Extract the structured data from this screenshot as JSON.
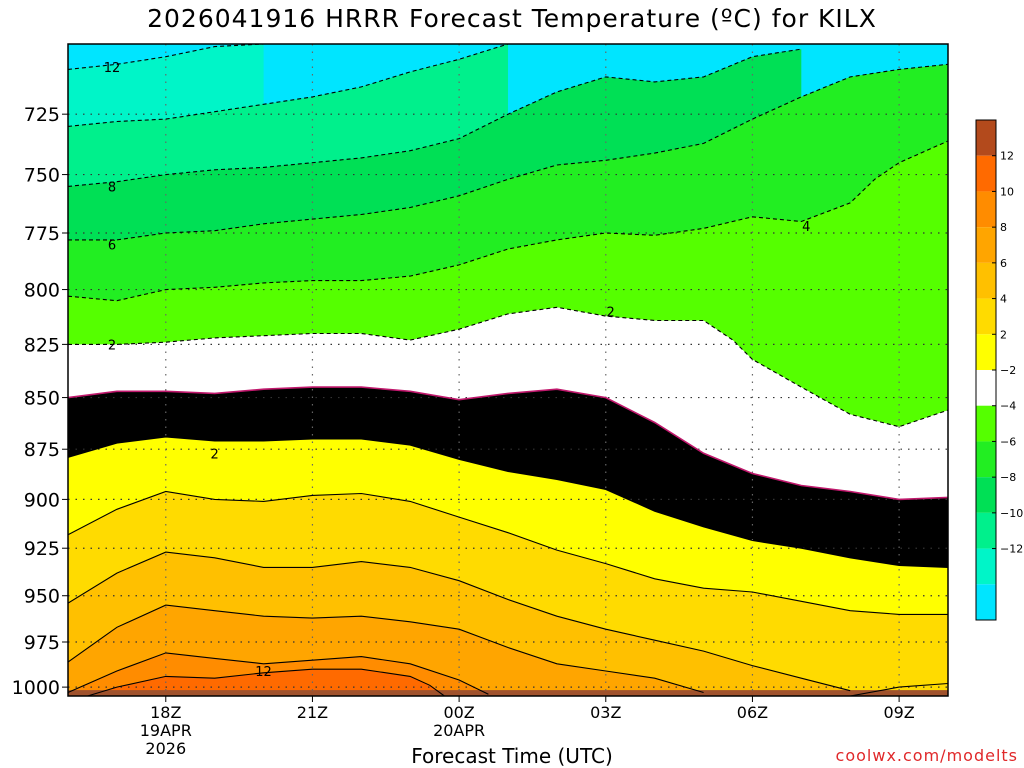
{
  "title": "2026041916 HRRR Forecast Temperature (ºC) for KILX",
  "watermark": "coolwx.com/modelts",
  "chart_data": {
    "type": "time-height contour",
    "xlabel": "Forecast Time (UTC)",
    "ylabel": "",
    "x_range_hours_utc": [
      16,
      34
    ],
    "y_range_hpa": [
      697,
      1005
    ],
    "y_scale": "log-pressure (inverted)",
    "grid": true,
    "legend": "right colorbar",
    "x_ticks": [
      {
        "hour": 18,
        "lines": [
          "18Z",
          "19APR",
          "2026"
        ]
      },
      {
        "hour": 21,
        "lines": [
          "21Z"
        ]
      },
      {
        "hour": 24,
        "lines": [
          "00Z",
          "20APR"
        ]
      },
      {
        "hour": 27,
        "lines": [
          "03Z"
        ]
      },
      {
        "hour": 30,
        "lines": [
          "06Z"
        ]
      },
      {
        "hour": 33,
        "lines": [
          "09Z"
        ]
      }
    ],
    "y_ticks": [
      725,
      750,
      775,
      800,
      825,
      850,
      875,
      900,
      925,
      950,
      975,
      1000
    ],
    "colorbar": {
      "bands": [
        {
          "lo": 14,
          "hi": 16,
          "color": "#b34a1c"
        },
        {
          "lo": 12,
          "hi": 14,
          "color": "#ff6a00"
        },
        {
          "lo": 10,
          "hi": 12,
          "color": "#ff8c00"
        },
        {
          "lo": 8,
          "hi": 10,
          "color": "#ffa500"
        },
        {
          "lo": 6,
          "hi": 8,
          "color": "#ffc000"
        },
        {
          "lo": 4,
          "hi": 6,
          "color": "#ffdb00"
        },
        {
          "lo": 2,
          "hi": 4,
          "color": "#ffff00"
        },
        {
          "lo": -2,
          "hi": 2,
          "color": "#ffffff"
        },
        {
          "lo": -4,
          "hi": -2,
          "color": "#55ff00"
        },
        {
          "lo": -6,
          "hi": -4,
          "color": "#22ee22"
        },
        {
          "lo": -8,
          "hi": -6,
          "color": "#00e055"
        },
        {
          "lo": -10,
          "hi": -8,
          "color": "#00f08c"
        },
        {
          "lo": -12,
          "hi": -10,
          "color": "#00f5c8"
        },
        {
          "lo": -14,
          "hi": -12,
          "color": "#00e5ff"
        }
      ],
      "tick_labels": [
        "12",
        "10",
        "8",
        "6",
        "4",
        "2",
        "−2",
        "−4",
        "−6",
        "−8",
        "−10",
        "−12"
      ]
    },
    "contour_labels": [
      {
        "text": "12",
        "hour": 16.9,
        "hpa": 706
      },
      {
        "text": "8",
        "hour": 16.9,
        "hpa": 755
      },
      {
        "text": "6",
        "hour": 16.9,
        "hpa": 780
      },
      {
        "text": "2",
        "hour": 16.9,
        "hpa": 825
      },
      {
        "text": "2",
        "hour": 27.1,
        "hpa": 810
      },
      {
        "text": "4",
        "hour": 31.1,
        "hpa": 772
      },
      {
        "text": "2",
        "hour": 19.0,
        "hpa": 877
      },
      {
        "text": "12",
        "hour": 20.0,
        "hpa": 991
      }
    ],
    "isotherms": [
      {
        "temp": -12,
        "style": "dashed",
        "points": [
          [
            16,
            707
          ],
          [
            17,
            705
          ],
          [
            18,
            702
          ],
          [
            19,
            698
          ],
          [
            20,
            697
          ]
        ]
      },
      {
        "temp": -10,
        "style": "dashed",
        "points": [
          [
            16,
            730
          ],
          [
            17,
            728
          ],
          [
            18,
            727
          ],
          [
            19,
            724
          ],
          [
            20,
            721
          ],
          [
            21,
            718
          ],
          [
            22,
            714
          ],
          [
            23,
            708
          ],
          [
            24,
            703
          ],
          [
            25,
            697
          ]
        ]
      },
      {
        "temp": -8,
        "style": "dashed",
        "points": [
          [
            16,
            755
          ],
          [
            17,
            753
          ],
          [
            18,
            750
          ],
          [
            19,
            748
          ],
          [
            20,
            747
          ],
          [
            21,
            745
          ],
          [
            22,
            743
          ],
          [
            23,
            740
          ],
          [
            24,
            735
          ],
          [
            25,
            725
          ],
          [
            26,
            716
          ],
          [
            27,
            710
          ],
          [
            28,
            712
          ],
          [
            29,
            710
          ],
          [
            30,
            702
          ],
          [
            31,
            699
          ]
        ]
      },
      {
        "temp": -6,
        "style": "dashed",
        "points": [
          [
            16,
            778
          ],
          [
            17,
            778
          ],
          [
            18,
            775
          ],
          [
            19,
            774
          ],
          [
            20,
            771
          ],
          [
            21,
            769
          ],
          [
            22,
            767
          ],
          [
            23,
            764
          ],
          [
            24,
            759
          ],
          [
            25,
            752
          ],
          [
            26,
            746
          ],
          [
            27,
            744
          ],
          [
            28,
            741
          ],
          [
            29,
            737
          ],
          [
            30,
            727
          ],
          [
            31,
            718
          ],
          [
            32,
            710
          ],
          [
            33,
            707
          ],
          [
            34,
            705
          ]
        ]
      },
      {
        "temp": -4,
        "style": "dashed",
        "points": [
          [
            16,
            803
          ],
          [
            17,
            805
          ],
          [
            18,
            800
          ],
          [
            19,
            799
          ],
          [
            20,
            797
          ],
          [
            21,
            796
          ],
          [
            22,
            796
          ],
          [
            23,
            794
          ],
          [
            24,
            789
          ],
          [
            25,
            782
          ],
          [
            26,
            778
          ],
          [
            27,
            775
          ],
          [
            28,
            776
          ],
          [
            29,
            773
          ],
          [
            30,
            768
          ],
          [
            31,
            770
          ],
          [
            32,
            762
          ],
          [
            32.5,
            752
          ],
          [
            33,
            745
          ],
          [
            34,
            736
          ]
        ]
      },
      {
        "temp": -2,
        "style": "dashed",
        "points": [
          [
            16,
            825
          ],
          [
            17,
            825
          ],
          [
            18,
            824
          ],
          [
            19,
            822
          ],
          [
            20,
            821
          ],
          [
            21,
            820
          ],
          [
            22,
            820
          ],
          [
            23,
            823
          ],
          [
            24,
            818
          ],
          [
            25,
            811
          ],
          [
            26,
            808
          ],
          [
            27,
            812
          ],
          [
            28,
            814
          ],
          [
            29,
            814
          ],
          [
            29.6,
            823
          ],
          [
            30,
            832
          ],
          [
            31,
            845
          ],
          [
            32,
            858
          ],
          [
            33,
            864
          ],
          [
            34,
            856
          ]
        ]
      },
      {
        "temp": 0,
        "style": "solid",
        "color": "#c0186c",
        "points": [
          [
            16,
            850
          ],
          [
            17,
            847
          ],
          [
            18,
            847
          ],
          [
            19,
            848
          ],
          [
            20,
            846
          ],
          [
            21,
            845
          ],
          [
            22,
            845
          ],
          [
            23,
            847
          ],
          [
            24,
            851
          ],
          [
            25,
            848
          ],
          [
            26,
            846
          ],
          [
            27,
            850
          ],
          [
            28,
            862
          ],
          [
            29,
            877
          ],
          [
            30,
            887
          ],
          [
            31,
            893
          ],
          [
            32,
            896
          ],
          [
            33,
            900
          ],
          [
            34,
            899
          ]
        ]
      },
      {
        "temp": 2,
        "style": "solid",
        "points": [
          [
            16,
            879
          ],
          [
            17,
            872
          ],
          [
            18,
            869
          ],
          [
            19,
            871
          ],
          [
            20,
            871
          ],
          [
            21,
            870
          ],
          [
            22,
            870
          ],
          [
            23,
            873
          ],
          [
            24,
            880
          ],
          [
            25,
            886
          ],
          [
            26,
            890
          ],
          [
            27,
            895
          ],
          [
            28,
            906
          ],
          [
            29,
            914
          ],
          [
            30,
            921
          ],
          [
            31,
            925
          ],
          [
            32,
            930
          ],
          [
            33,
            934
          ],
          [
            34,
            935
          ]
        ]
      },
      {
        "temp": 4,
        "style": "solid",
        "points": [
          [
            16,
            918
          ],
          [
            17,
            905
          ],
          [
            18,
            896
          ],
          [
            19,
            900
          ],
          [
            20,
            901
          ],
          [
            21,
            898
          ],
          [
            22,
            897
          ],
          [
            23,
            901
          ],
          [
            24,
            909
          ],
          [
            25,
            917
          ],
          [
            26,
            926
          ],
          [
            27,
            933
          ],
          [
            28,
            941
          ],
          [
            29,
            946
          ],
          [
            30,
            948
          ],
          [
            31,
            953
          ],
          [
            32,
            958
          ],
          [
            33,
            960
          ],
          [
            34,
            960
          ]
        ]
      },
      {
        "temp": 6,
        "style": "solid",
        "points": [
          [
            16,
            954
          ],
          [
            17,
            938
          ],
          [
            18,
            927
          ],
          [
            19,
            930
          ],
          [
            20,
            935
          ],
          [
            21,
            935
          ],
          [
            22,
            932
          ],
          [
            23,
            935
          ],
          [
            24,
            942
          ],
          [
            25,
            952
          ],
          [
            26,
            961
          ],
          [
            27,
            968
          ],
          [
            28,
            974
          ],
          [
            29,
            980
          ],
          [
            30,
            988
          ],
          [
            31,
            995
          ],
          [
            32,
            1002
          ]
        ]
      },
      {
        "temp": 8,
        "style": "solid",
        "points": [
          [
            16,
            986
          ],
          [
            17,
            967
          ],
          [
            18,
            955
          ],
          [
            19,
            958
          ],
          [
            20,
            961
          ],
          [
            21,
            962
          ],
          [
            22,
            961
          ],
          [
            23,
            964
          ],
          [
            24,
            968
          ],
          [
            25,
            978
          ],
          [
            26,
            987
          ],
          [
            27,
            991
          ],
          [
            28,
            995
          ],
          [
            29,
            1003
          ]
        ]
      },
      {
        "temp": 10,
        "style": "solid",
        "points": [
          [
            16,
            1003
          ],
          [
            17,
            991
          ],
          [
            18,
            981
          ],
          [
            19,
            984
          ],
          [
            20,
            987
          ],
          [
            21,
            985
          ],
          [
            22,
            983
          ],
          [
            23,
            987
          ],
          [
            24,
            996
          ],
          [
            24.6,
            1004
          ]
        ]
      },
      {
        "temp": 12,
        "style": "solid",
        "points": [
          [
            16.4,
            1005
          ],
          [
            17,
            1000
          ],
          [
            18,
            994
          ],
          [
            19,
            995
          ],
          [
            20,
            992
          ],
          [
            21,
            990
          ],
          [
            22,
            990
          ],
          [
            23,
            994
          ],
          [
            23.4,
            999
          ],
          [
            23.7,
            1005
          ]
        ]
      },
      {
        "temp": -2,
        "style": "solid",
        "points": [
          [
            32,
            1005
          ],
          [
            33,
            1000
          ],
          [
            34,
            998
          ]
        ]
      }
    ]
  }
}
